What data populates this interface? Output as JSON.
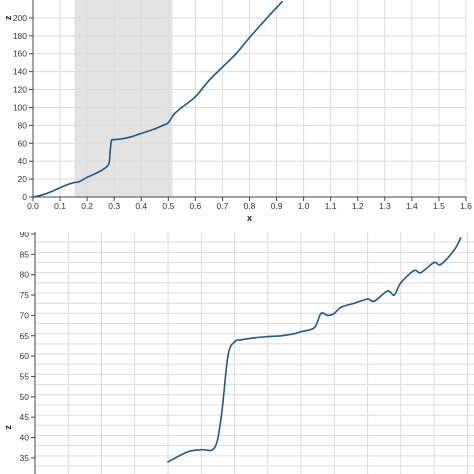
{
  "colors": {
    "line": "#1f5a8c",
    "grid": "#dcdcdc",
    "highlight": "#e3e3e3",
    "axis": "#444444"
  },
  "chart_data": [
    {
      "type": "line",
      "xlabel": "x",
      "ylabel": "z",
      "xlim": [
        0,
        1.6
      ],
      "ylim": [
        0,
        220
      ],
      "x_ticks": [
        0.0,
        0.1,
        0.2,
        0.3,
        0.4,
        0.5,
        0.6,
        0.7,
        0.8,
        0.9,
        1.0,
        1.1,
        1.2,
        1.3,
        1.4,
        1.5,
        1.6
      ],
      "x_tick_labels": [
        "0.0",
        "0.1",
        "0.2",
        "0.3",
        "0.4",
        "0.5",
        "0.6",
        "0.7",
        "0.8",
        "0.9",
        "1.0",
        "1.1",
        "1.2",
        "1.3",
        "1.4",
        "1.5",
        "1.6"
      ],
      "y_ticks": [
        0,
        20,
        40,
        60,
        80,
        100,
        120,
        140,
        160,
        180,
        200
      ],
      "y_tick_labels": [
        "0",
        "20",
        "40",
        "60",
        "80",
        "100",
        "120",
        "140",
        "160",
        "180",
        "200"
      ],
      "highlight_x_range": [
        0.153,
        0.515
      ],
      "grid": true,
      "series": [
        {
          "x": [
            0.0,
            0.03,
            0.06,
            0.09,
            0.12,
            0.15,
            0.17,
            0.2,
            0.23,
            0.26,
            0.28,
            0.285,
            0.29,
            0.3,
            0.33,
            0.36,
            0.39,
            0.42,
            0.45,
            0.48,
            0.5,
            0.52,
            0.55,
            0.6,
            0.65,
            0.7,
            0.75,
            0.8,
            0.85,
            0.88,
            0.92
          ],
          "y": [
            0,
            2,
            5,
            9,
            13,
            16,
            17,
            22,
            26,
            31,
            37,
            50,
            63,
            64,
            65,
            67,
            70,
            73,
            76,
            80,
            83,
            92,
            100,
            112,
            130,
            145,
            160,
            178,
            195,
            205,
            218
          ]
        }
      ]
    },
    {
      "type": "line",
      "xlabel": "",
      "ylabel": "z",
      "ylim": [
        33,
        90
      ],
      "y_ticks": [
        35,
        40,
        45,
        50,
        55,
        60,
        65,
        70,
        75,
        80,
        85,
        90
      ],
      "y_tick_labels": [
        "35",
        "40",
        "45",
        "50",
        "55",
        "60",
        "65",
        "70",
        "75",
        "80",
        "85",
        "90"
      ],
      "grid": true,
      "series": [
        {
          "x": [
            0.2,
            0.23,
            0.25,
            0.27,
            0.28,
            0.29,
            0.3,
            0.31,
            0.33,
            0.35,
            0.37,
            0.39,
            0.4,
            0.42,
            0.43,
            0.44,
            0.45,
            0.46,
            0.48,
            0.5,
            0.51,
            0.53,
            0.54,
            0.55,
            0.57,
            0.58,
            0.6,
            0.61,
            0.63,
            0.64
          ],
          "y": [
            34,
            36.5,
            37,
            37.5,
            45,
            60,
            63.5,
            64,
            64.5,
            64.8,
            65,
            65.5,
            66,
            67,
            70.5,
            70,
            70.5,
            72,
            73,
            74,
            73.5,
            76,
            75,
            78,
            81,
            80.5,
            83,
            82.5,
            86,
            89
          ]
        }
      ]
    }
  ]
}
